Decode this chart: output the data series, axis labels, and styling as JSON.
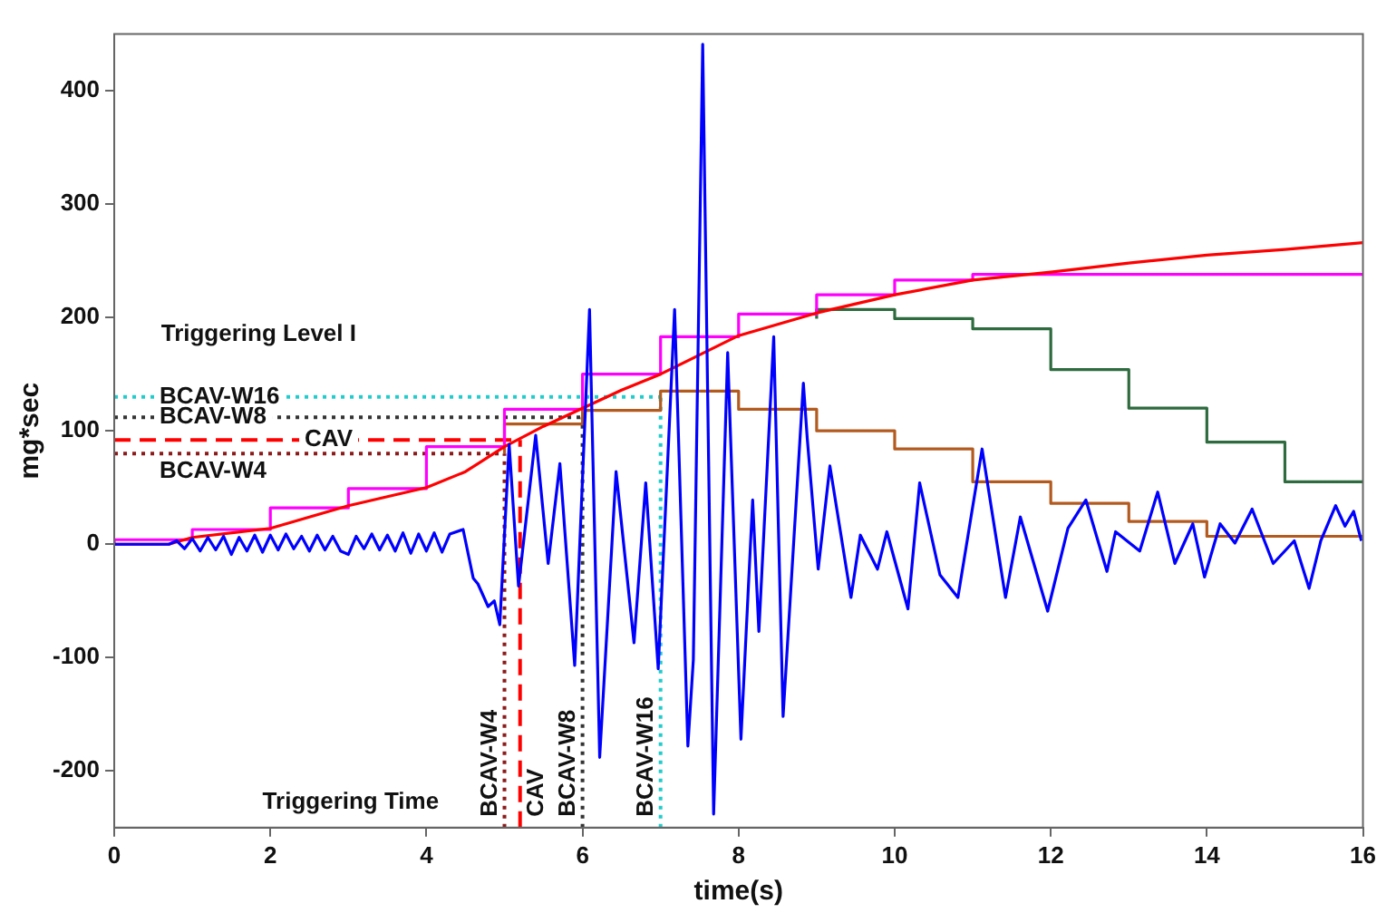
{
  "chart_data": {
    "type": "line",
    "xlabel": "time(s)",
    "ylabel": "mg*sec",
    "xlim": [
      0,
      16
    ],
    "xticks": [
      0,
      2,
      4,
      6,
      8,
      10,
      12,
      14,
      16
    ],
    "ylim": [
      -250,
      450
    ],
    "yticks": [
      -200,
      -100,
      0,
      100,
      200,
      300,
      400
    ],
    "grid": false,
    "legend": false,
    "marker": "none",
    "series": [
      {
        "color": "#0000ff",
        "x": [
          0,
          0.7,
          0.8,
          0.9,
          1.0,
          1.1,
          1.2,
          1.3,
          1.4,
          1.5,
          1.6,
          1.7,
          1.8,
          1.9,
          2.0,
          2.1,
          2.2,
          2.3,
          2.4,
          2.5,
          2.6,
          2.7,
          2.8,
          2.9,
          3.0,
          3.1,
          3.2,
          3.3,
          3.4,
          3.5,
          3.6,
          3.7,
          3.8,
          3.9,
          4.0,
          4.1,
          4.2,
          4.3,
          4.47,
          4.6,
          4.66,
          4.79,
          4.87,
          4.94,
          5.06,
          5.18,
          5.4,
          5.56,
          5.71,
          5.9,
          6.09,
          6.22,
          6.43,
          6.66,
          6.81,
          6.97,
          7.18,
          7.35,
          7.42,
          7.54,
          7.68,
          7.86,
          8.03,
          8.18,
          8.26,
          8.45,
          8.57,
          8.83,
          8.88,
          9.02,
          9.17,
          9.44,
          9.56,
          9.78,
          9.9,
          10.17,
          10.32,
          10.58,
          10.81,
          11.12,
          11.42,
          11.61,
          11.96,
          12.22,
          12.45,
          12.72,
          12.83,
          13.14,
          13.37,
          13.59,
          13.82,
          13.97,
          14.17,
          14.36,
          14.58,
          14.85,
          15.12,
          15.31,
          15.46,
          15.65,
          15.77,
          15.88,
          15.98
        ],
        "values": [
          0,
          0,
          3,
          -4,
          5,
          -6,
          6,
          -5,
          7,
          -9,
          6,
          -6,
          8,
          -7,
          8,
          -5,
          9,
          -4,
          7,
          -6,
          8,
          -5,
          7,
          -6,
          -9,
          7,
          -4,
          9,
          -5,
          8,
          -6,
          10,
          -8,
          9,
          -6,
          10,
          -7,
          9,
          13,
          -30,
          -35,
          -55,
          -50,
          -71,
          88,
          -37,
          96,
          -17,
          71,
          -107,
          207,
          -188,
          64,
          -87,
          54,
          -110,
          207,
          -178,
          -102,
          441,
          -238,
          169,
          -172,
          39,
          -77,
          183,
          -152,
          142,
          93,
          -22,
          69,
          -47,
          8,
          -22,
          11,
          -57,
          54,
          -27,
          -47,
          84,
          -47,
          24,
          -59,
          14,
          39,
          -24,
          11,
          -6,
          46,
          -17,
          18,
          -29,
          18,
          1,
          31,
          -17,
          3,
          -39,
          3,
          34,
          16,
          29,
          3
        ]
      },
      {
        "color": "#ff0000",
        "x": [
          0,
          0.7,
          1,
          2,
          3,
          4,
          4.5,
          5,
          5.5,
          6,
          6.5,
          7,
          7.5,
          8,
          9,
          10,
          11,
          12,
          13,
          14,
          15,
          16
        ],
        "values": [
          0,
          0,
          6,
          14,
          34,
          50,
          64,
          86,
          104,
          120,
          136,
          150,
          167,
          184,
          204,
          220,
          233,
          240,
          248,
          255,
          260,
          266
        ]
      },
      {
        "type": "step",
        "color": "#ff00ff",
        "x": [
          0,
          1,
          2,
          3,
          4,
          5,
          6,
          7,
          8,
          9,
          10,
          11,
          12,
          16
        ],
        "values": [
          0,
          4,
          13,
          32,
          49,
          86,
          119,
          150,
          183,
          203,
          220,
          233,
          238,
          238
        ]
      },
      {
        "type": "step",
        "color": "#b35a1f",
        "x": [
          5,
          6,
          7,
          8,
          9,
          10,
          11,
          12,
          13,
          14,
          15,
          16
        ],
        "values": [
          80,
          106,
          118,
          135,
          119,
          100,
          84,
          55,
          36,
          20,
          7,
          7
        ]
      },
      {
        "type": "step",
        "color": "#2e6b3f",
        "x": [
          9,
          10,
          11,
          12,
          13,
          14,
          15,
          16
        ],
        "values": [
          199,
          207,
          199,
          190,
          154,
          120,
          90,
          55
        ]
      }
    ],
    "ref_lines": [
      {
        "axis": "y",
        "value": 130,
        "label": "BCAV-W16",
        "color": "#22cccc",
        "line_style": "dotted"
      },
      {
        "axis": "y",
        "value": 112,
        "label": "BCAV-W8",
        "color": "#333333",
        "line_style": "dotted"
      },
      {
        "axis": "y",
        "value": 92,
        "label": "CAV",
        "color": "#ff0000",
        "line_style": "dashed"
      },
      {
        "axis": "y",
        "value": 80,
        "label": "BCAV-W4",
        "color": "#8b1a1a",
        "line_style": "dotted"
      },
      {
        "axis": "x",
        "value": 7,
        "label": "BCAV-W16",
        "color": "#22cccc",
        "line_style": "dotted"
      },
      {
        "axis": "x",
        "value": 6,
        "label": "BCAV-W8",
        "color": "#333333",
        "line_style": "dotted"
      },
      {
        "axis": "x",
        "value": 5.2,
        "label": "CAV",
        "color": "#ff0000",
        "line_style": "dashed"
      },
      {
        "axis": "x",
        "value": 5,
        "label": "BCAV-W4",
        "color": "#8b1a1a",
        "line_style": "dotted"
      }
    ],
    "annotations": [
      "Triggering Level I",
      "Triggering Time"
    ]
  }
}
